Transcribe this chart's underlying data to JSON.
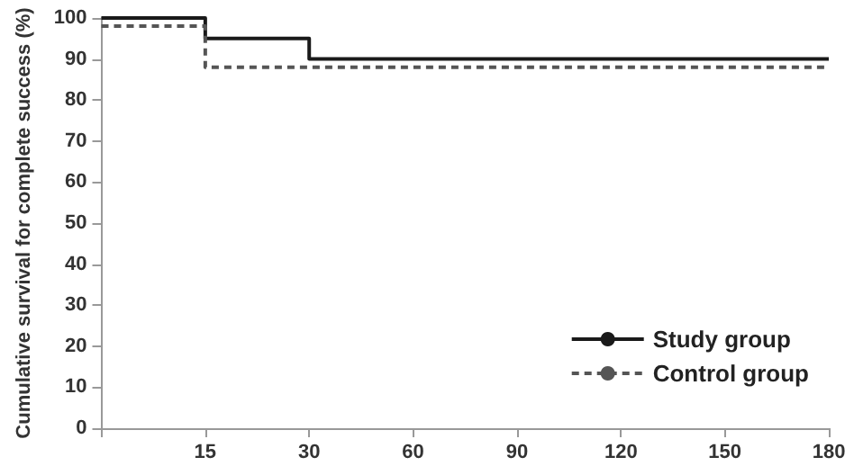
{
  "chart_data": {
    "type": "step",
    "ylabel": "Cumulative survival for complete success (%)",
    "categories": [
      null,
      "15",
      "30",
      "60",
      "90",
      "120",
      "150",
      "180"
    ],
    "series": [
      {
        "name": "Study group",
        "color": "#1a1a1a",
        "line_style": "solid",
        "values": [
          100,
          95,
          90,
          90,
          90,
          90,
          90,
          90
        ]
      },
      {
        "name": "Control group",
        "color": "#555555",
        "line_style": "dashed",
        "values": [
          98,
          88,
          88,
          88,
          88,
          88,
          88,
          88
        ]
      }
    ],
    "ylim": [
      0,
      100
    ],
    "yticks": [
      0,
      10,
      20,
      30,
      40,
      50,
      60,
      70,
      80,
      90,
      100
    ],
    "grid": false,
    "legend": "bottom right",
    "marker": "none"
  }
}
